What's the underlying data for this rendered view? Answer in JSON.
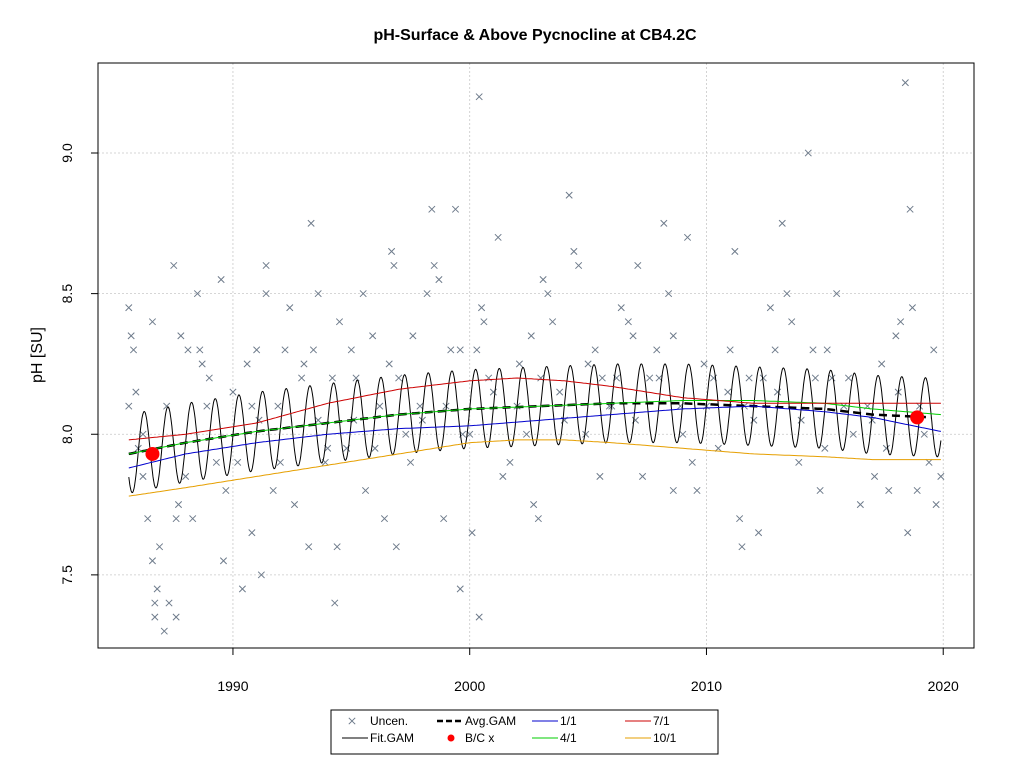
{
  "chart_data": {
    "type": "scatter",
    "title": "pH-Surface & Above Pycnocline at CB4.2C",
    "ylabel": "pH [SU]",
    "xlabel": "",
    "xlim": [
      1984.3,
      2021.3
    ],
    "ylim": [
      7.24,
      9.32
    ],
    "x_ticks": [
      1990,
      2000,
      2010,
      2020
    ],
    "y_ticks": [
      7.5,
      8.0,
      8.5,
      9.0
    ],
    "y_tick_labels": [
      "7.5",
      "8.0",
      "8.5",
      "9.0"
    ],
    "grid": true,
    "legend": {
      "placement": "bottom-center",
      "entries": [
        {
          "label": "Uncen.",
          "symbol": "x",
          "color": "#6e7b8b"
        },
        {
          "label": "Fit.GAM",
          "symbol": "line",
          "color": "#000000"
        },
        {
          "label": "Avg.GAM",
          "symbol": "dashed",
          "color": "#000000"
        },
        {
          "label": "B/C x",
          "symbol": "dot",
          "color": "#ff0000"
        },
        {
          "label": "1/1",
          "symbol": "line",
          "color": "#0000cd"
        },
        {
          "label": "4/1",
          "symbol": "line",
          "color": "#00cc00"
        },
        {
          "label": "7/1",
          "symbol": "line",
          "color": "#cc0000"
        },
        {
          "label": "10/1",
          "symbol": "line",
          "color": "#e69f00"
        }
      ]
    },
    "uncensored_points": [
      [
        1985.6,
        8.45
      ],
      [
        1985.7,
        8.35
      ],
      [
        1985.8,
        8.3
      ],
      [
        1985.9,
        8.15
      ],
      [
        1985.6,
        8.1
      ],
      [
        1986.2,
        7.85
      ],
      [
        1986.2,
        8.0
      ],
      [
        1986.4,
        7.7
      ],
      [
        1986.6,
        7.55
      ],
      [
        1986.6,
        8.4
      ],
      [
        1986.8,
        7.45
      ],
      [
        1986.7,
        7.4
      ],
      [
        1986.7,
        7.35
      ],
      [
        1987.1,
        7.3
      ],
      [
        1986.9,
        7.6
      ],
      [
        1987.3,
        7.4
      ],
      [
        1987.5,
        8.6
      ],
      [
        1987.6,
        7.35
      ],
      [
        1987.7,
        7.75
      ],
      [
        1987.8,
        8.35
      ],
      [
        1987.6,
        7.7
      ],
      [
        1988.1,
        8.3
      ],
      [
        1988.3,
        7.7
      ],
      [
        1988.5,
        8.5
      ],
      [
        1988.7,
        8.25
      ],
      [
        1988.9,
        8.1
      ],
      [
        1989.3,
        7.9
      ],
      [
        1989.5,
        8.55
      ],
      [
        1989.6,
        7.55
      ],
      [
        1989.7,
        7.8
      ],
      [
        1990.0,
        8.15
      ],
      [
        1990.4,
        7.45
      ],
      [
        1990.6,
        8.25
      ],
      [
        1990.8,
        7.65
      ],
      [
        1991.0,
        8.3
      ],
      [
        1991.2,
        7.5
      ],
      [
        1991.4,
        8.5
      ],
      [
        1991.4,
        8.6
      ],
      [
        1991.7,
        7.8
      ],
      [
        1991.9,
        8.1
      ],
      [
        1992.2,
        8.3
      ],
      [
        1992.4,
        8.45
      ],
      [
        1992.6,
        7.75
      ],
      [
        1992.9,
        8.2
      ],
      [
        1993.2,
        7.6
      ],
      [
        1993.3,
        8.75
      ],
      [
        1993.4,
        8.3
      ],
      [
        1993.6,
        8.5
      ],
      [
        1993.9,
        7.9
      ],
      [
        1994.2,
        8.2
      ],
      [
        1994.3,
        7.4
      ],
      [
        1994.4,
        7.6
      ],
      [
        1994.5,
        8.4
      ],
      [
        1994.8,
        7.95
      ],
      [
        1995.0,
        8.3
      ],
      [
        1995.2,
        8.2
      ],
      [
        1995.5,
        8.5
      ],
      [
        1995.6,
        7.8
      ],
      [
        1995.9,
        8.35
      ],
      [
        1996.2,
        8.1
      ],
      [
        1996.4,
        7.7
      ],
      [
        1996.7,
        8.65
      ],
      [
        1996.8,
        8.6
      ],
      [
        1996.9,
        7.6
      ],
      [
        1997.3,
        8.0
      ],
      [
        1997.5,
        7.9
      ],
      [
        1997.6,
        8.35
      ],
      [
        1997.9,
        8.1
      ],
      [
        1998.2,
        8.5
      ],
      [
        1998.4,
        8.8
      ],
      [
        1998.5,
        8.6
      ],
      [
        1998.7,
        8.55
      ],
      [
        1998.9,
        7.7
      ],
      [
        1999.2,
        8.3
      ],
      [
        1999.4,
        8.8
      ],
      [
        1999.6,
        7.45
      ],
      [
        1999.7,
        8.0
      ],
      [
        2000.1,
        7.65
      ],
      [
        2000.3,
        8.3
      ],
      [
        2000.4,
        9.2
      ],
      [
        2000.5,
        8.45
      ],
      [
        2000.6,
        8.4
      ],
      [
        2000.4,
        7.35
      ],
      [
        2000.8,
        8.2
      ],
      [
        2001.2,
        8.7
      ],
      [
        2001.4,
        7.85
      ],
      [
        2001.7,
        7.9
      ],
      [
        2002.1,
        8.25
      ],
      [
        2002.4,
        8.0
      ],
      [
        2002.7,
        7.75
      ],
      [
        2002.9,
        7.7
      ],
      [
        2003.1,
        8.55
      ],
      [
        2003.3,
        8.5
      ],
      [
        2003.5,
        8.4
      ],
      [
        2003.8,
        8.15
      ],
      [
        2004.2,
        8.85
      ],
      [
        2004.4,
        8.65
      ],
      [
        2004.6,
        8.6
      ],
      [
        2004.9,
        8.0
      ],
      [
        2005.3,
        8.3
      ],
      [
        2005.5,
        7.85
      ],
      [
        2005.9,
        8.1
      ],
      [
        2006.2,
        8.2
      ],
      [
        2006.4,
        8.45
      ],
      [
        2006.7,
        8.4
      ],
      [
        2006.9,
        8.35
      ],
      [
        2007.1,
        8.6
      ],
      [
        2007.3,
        7.85
      ],
      [
        2007.6,
        8.2
      ],
      [
        2007.9,
        8.3
      ],
      [
        2008.2,
        8.75
      ],
      [
        2008.4,
        8.5
      ],
      [
        2008.6,
        7.8
      ],
      [
        2008.9,
        8.1
      ],
      [
        2009.2,
        8.7
      ],
      [
        2009.4,
        7.9
      ],
      [
        2009.6,
        7.8
      ],
      [
        2009.9,
        8.25
      ],
      [
        2010.3,
        8.2
      ],
      [
        2010.5,
        7.95
      ],
      [
        2010.9,
        8.15
      ],
      [
        2011.2,
        8.65
      ],
      [
        2011.4,
        7.7
      ],
      [
        2011.5,
        7.6
      ],
      [
        2011.8,
        8.2
      ],
      [
        2012.2,
        7.65
      ],
      [
        2012.4,
        8.2
      ],
      [
        2012.7,
        8.45
      ],
      [
        2012.9,
        8.3
      ],
      [
        2013.2,
        8.75
      ],
      [
        2013.4,
        8.5
      ],
      [
        2013.6,
        8.4
      ],
      [
        2013.9,
        7.9
      ],
      [
        2014.3,
        9.0
      ],
      [
        2014.5,
        8.3
      ],
      [
        2014.8,
        7.8
      ],
      [
        2015.1,
        8.3
      ],
      [
        2015.3,
        8.2
      ],
      [
        2015.5,
        8.5
      ],
      [
        2015.8,
        8.1
      ],
      [
        2016.2,
        8.0
      ],
      [
        2016.5,
        7.75
      ],
      [
        2016.8,
        8.1
      ],
      [
        2017.1,
        7.85
      ],
      [
        2017.4,
        8.25
      ],
      [
        2017.7,
        7.8
      ],
      [
        2018.0,
        8.35
      ],
      [
        2018.2,
        8.4
      ],
      [
        2018.4,
        9.25
      ],
      [
        2018.5,
        7.65
      ],
      [
        2018.6,
        8.8
      ],
      [
        2018.7,
        8.45
      ],
      [
        2018.9,
        7.8
      ],
      [
        2019.2,
        8.0
      ],
      [
        2019.4,
        7.9
      ],
      [
        2019.6,
        8.3
      ],
      [
        2019.7,
        7.75
      ],
      [
        2019.9,
        7.85
      ],
      [
        1986.0,
        7.95
      ],
      [
        1987.2,
        8.1
      ],
      [
        1988.0,
        7.85
      ],
      [
        1989.0,
        8.2
      ],
      [
        1990.2,
        7.9
      ],
      [
        1991.1,
        8.05
      ],
      [
        1992.0,
        7.9
      ],
      [
        1993.0,
        8.25
      ],
      [
        1994.0,
        7.95
      ],
      [
        1995.1,
        8.05
      ],
      [
        1996.0,
        7.95
      ],
      [
        1997.0,
        8.2
      ],
      [
        1998.0,
        8.05
      ],
      [
        1999.0,
        8.1
      ],
      [
        2000.0,
        8.0
      ],
      [
        2001.0,
        8.15
      ],
      [
        2002.0,
        8.1
      ],
      [
        2003.0,
        8.2
      ],
      [
        2004.0,
        8.05
      ],
      [
        2005.0,
        8.25
      ],
      [
        2006.0,
        8.1
      ],
      [
        2007.0,
        8.05
      ],
      [
        2008.0,
        8.2
      ],
      [
        2009.0,
        8.0
      ],
      [
        2010.0,
        8.1
      ],
      [
        2011.0,
        8.3
      ],
      [
        2012.0,
        8.05
      ],
      [
        2013.0,
        8.15
      ],
      [
        2014.0,
        8.05
      ],
      [
        2015.0,
        7.95
      ],
      [
        2016.0,
        8.2
      ],
      [
        2017.0,
        8.05
      ],
      [
        2018.1,
        8.15
      ],
      [
        2019.0,
        8.1
      ],
      [
        1988.6,
        8.3
      ],
      [
        1990.8,
        8.1
      ],
      [
        1993.6,
        8.05
      ],
      [
        1996.6,
        8.25
      ],
      [
        1999.6,
        8.3
      ],
      [
        2002.6,
        8.35
      ],
      [
        2005.6,
        8.2
      ],
      [
        2008.6,
        8.35
      ],
      [
        2011.6,
        8.1
      ],
      [
        2014.6,
        8.2
      ],
      [
        2017.6,
        7.95
      ]
    ],
    "bc_points": [
      [
        1986.6,
        7.93
      ],
      [
        2018.9,
        8.06
      ]
    ],
    "fit_gam": {
      "note": "seasonal GAM fit oscillating around the average trend",
      "amplitude": 0.14
    },
    "series": [
      {
        "name": "Avg.GAM",
        "color": "#000000",
        "dash": true,
        "x": [
          1985.6,
          1988,
          1991,
          1994,
          1997,
          2000,
          2003,
          2006,
          2009,
          2012,
          2015,
          2017,
          2019.5
        ],
        "y": [
          7.93,
          7.97,
          8.01,
          8.04,
          8.07,
          8.09,
          8.1,
          8.11,
          8.11,
          8.1,
          8.09,
          8.07,
          8.06
        ]
      },
      {
        "name": "1/1",
        "color": "#0000cd",
        "dash": false,
        "x": [
          1985.6,
          1988,
          1991,
          1994,
          1997,
          2000,
          2003,
          2006,
          2009,
          2012,
          2015,
          2017,
          2019.9
        ],
        "y": [
          7.88,
          7.93,
          7.97,
          8.0,
          8.02,
          8.03,
          8.05,
          8.07,
          8.09,
          8.1,
          8.08,
          8.06,
          8.01
        ]
      },
      {
        "name": "4/1",
        "color": "#00cc00",
        "dash": false,
        "x": [
          1985.6,
          1988,
          1991,
          1994,
          1997,
          2000,
          2003,
          2006,
          2009,
          2012,
          2015,
          2017,
          2019.9
        ],
        "y": [
          7.93,
          7.97,
          8.01,
          8.04,
          8.07,
          8.09,
          8.1,
          8.11,
          8.12,
          8.12,
          8.11,
          8.09,
          8.07
        ]
      },
      {
        "name": "7/1",
        "color": "#cc0000",
        "dash": false,
        "x": [
          1985.6,
          1988,
          1991,
          1994,
          1997,
          2000,
          2002,
          2004,
          2006,
          2009,
          2012,
          2015,
          2017,
          2019.9
        ],
        "y": [
          7.98,
          8.0,
          8.04,
          8.11,
          8.16,
          8.19,
          8.2,
          8.19,
          8.17,
          8.13,
          8.11,
          8.11,
          8.11,
          8.11
        ]
      },
      {
        "name": "10/1",
        "color": "#e69f00",
        "dash": false,
        "x": [
          1985.6,
          1988,
          1991,
          1994,
          1997,
          2000,
          2002,
          2004,
          2006,
          2009,
          2012,
          2015,
          2017,
          2019.9
        ],
        "y": [
          7.78,
          7.81,
          7.85,
          7.89,
          7.93,
          7.97,
          7.98,
          7.98,
          7.97,
          7.95,
          7.93,
          7.92,
          7.91,
          7.91
        ]
      }
    ]
  }
}
